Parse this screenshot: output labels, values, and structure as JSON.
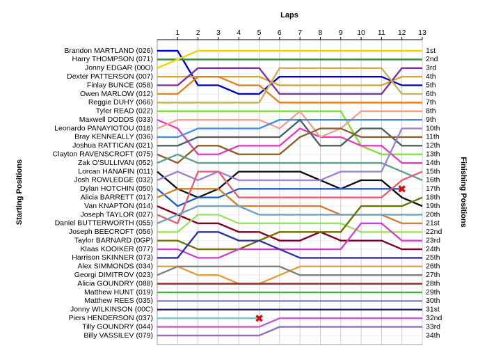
{
  "chart_data": {
    "type": "lapchart",
    "title": "Laps",
    "y_label": "Starting Positions",
    "y2_label": "Finishing Positions",
    "x": [
      0,
      1,
      2,
      3,
      4,
      5,
      6,
      7,
      8,
      9,
      10,
      11,
      12,
      13
    ],
    "xlim": [
      0,
      13
    ],
    "xticks": [
      1,
      2,
      3,
      4,
      5,
      6,
      7,
      8,
      9,
      10,
      11,
      12,
      13
    ],
    "ylim": [
      1,
      34
    ],
    "grid": true,
    "finishing_labels": [
      "1st",
      "2nd",
      "3rd",
      "4th",
      "5th",
      "6th",
      "7th",
      "8th",
      "9th",
      "10th",
      "11th",
      "12th",
      "13th",
      "14th",
      "15th",
      "16th",
      "17th",
      "18th",
      "19th",
      "20th",
      "21st",
      "22nd",
      "23rd",
      "24th",
      "25th",
      "26th",
      "27th",
      "28th",
      "29th",
      "30th",
      "31st",
      "32nd",
      "33rd",
      "34th"
    ],
    "series": [
      {
        "name": "Brandon MARTLAND (026)",
        "color": "#0000c0",
        "values": [
          1,
          1,
          5,
          5,
          6,
          6,
          4,
          4,
          4,
          4,
          4,
          4,
          5,
          5
        ]
      },
      {
        "name": "Harry THOMPSON (071)",
        "color": "#2e8b2e",
        "values": [
          2,
          2,
          2,
          2,
          2,
          2,
          2,
          2,
          2,
          2,
          2,
          2,
          2,
          2
        ]
      },
      {
        "name": "Jonny EDGAR (00O)",
        "color": "#e8d800",
        "values": [
          3,
          2,
          1,
          1,
          1,
          1,
          1,
          1,
          1,
          1,
          1,
          1,
          1,
          1
        ]
      },
      {
        "name": "Dexter PATTERSON (007)",
        "color": "#d0a830",
        "values": [
          4,
          4,
          4,
          4,
          4,
          4,
          5,
          5,
          5,
          5,
          5,
          5,
          4,
          4
        ]
      },
      {
        "name": "Finlay BUNCE (058)",
        "color": "#8030a0",
        "values": [
          5,
          5,
          3,
          3,
          3,
          3,
          6,
          6,
          6,
          6,
          6,
          6,
          3,
          3
        ]
      },
      {
        "name": "Owen MARLOW (012)",
        "color": "#e08020",
        "values": [
          6,
          6,
          4,
          4,
          5,
          5,
          7,
          7,
          7,
          7,
          7,
          7,
          7,
          7
        ]
      },
      {
        "name": "Reggie DUHY (066)",
        "color": "#c8b060",
        "values": [
          7,
          7,
          7,
          7,
          7,
          7,
          3,
          3,
          3,
          3,
          3,
          3,
          6,
          6
        ]
      },
      {
        "name": "Tyler READ (022)",
        "color": "#80e040",
        "values": [
          8,
          8,
          8,
          8,
          8,
          8,
          8,
          8,
          8,
          8,
          12,
          13,
          13,
          13
        ]
      },
      {
        "name": "Maxwell DODDS (033)",
        "color": "#e040c0",
        "values": [
          9,
          10,
          13,
          13,
          12,
          12,
          12,
          10,
          11,
          11,
          12,
          12,
          14,
          14
        ]
      },
      {
        "name": "Leonardo PANAYIOTOU (016)",
        "color": "#f0a090",
        "values": [
          10,
          9,
          9,
          9,
          9,
          9,
          10,
          8,
          11,
          10,
          8,
          8,
          8,
          8
        ]
      },
      {
        "name": "Bray KENNEALLY (036)",
        "color": "#4090e0",
        "values": [
          11,
          11,
          10,
          10,
          10,
          10,
          9,
          9,
          9,
          9,
          9,
          9,
          9,
          9
        ]
      },
      {
        "name": "Joshua RATTICAN (021)",
        "color": "#506060",
        "values": [
          12,
          12,
          11,
          11,
          11,
          11,
          11,
          9,
          12,
          12,
          10,
          10,
          12,
          12
        ]
      },
      {
        "name": "Clayton RAVENSCROFT (075)",
        "color": "#8b6030",
        "values": [
          13,
          14,
          12,
          12,
          13,
          13,
          13,
          11,
          10,
          10,
          11,
          11,
          11,
          11
        ]
      },
      {
        "name": "Zak O'SULLIVAN (052)",
        "color": "#60a090",
        "values": [
          14,
          13,
          14,
          14,
          14,
          14,
          14,
          14,
          14,
          14,
          14,
          14,
          15,
          16
        ]
      },
      {
        "name": "Lorcan HANAFIN (011)",
        "color": "#101010",
        "values": [
          15,
          17,
          18,
          17,
          15,
          15,
          15,
          15,
          16,
          17,
          16,
          16,
          18,
          19
        ]
      },
      {
        "name": "Josh ROWLEDGE (032)",
        "color": "#a080d0",
        "values": [
          16,
          15,
          16,
          15,
          16,
          16,
          16,
          16,
          16,
          15,
          15,
          15,
          10,
          10
        ]
      },
      {
        "name": "Dylan HOTCHIN (050)",
        "color": "#2060c0",
        "values": [
          17,
          19,
          18,
          18,
          17,
          17,
          17,
          17,
          17,
          17,
          17,
          17,
          17,
          null
        ]
      },
      {
        "name": "Alicia BARRETT (017)",
        "color": "#d08030",
        "values": [
          18,
          17,
          17,
          17,
          19,
          19,
          19,
          19,
          19,
          20,
          20,
          20,
          21,
          21
        ]
      },
      {
        "name": "Van KNAPTON (014)",
        "color": "#800020",
        "values": [
          19,
          20,
          21,
          21,
          22,
          22,
          23,
          23,
          22,
          23,
          23,
          23,
          24,
          24
        ]
      },
      {
        "name": "Joseph TAYLOR (027)",
        "color": "#e06070",
        "values": [
          20,
          21,
          15,
          15,
          18,
          18,
          18,
          18,
          18,
          18,
          18,
          18,
          16,
          15
        ]
      },
      {
        "name": "Daniel BUTTERWORTH (055)",
        "color": "#70a0c0",
        "values": [
          21,
          20,
          19,
          19,
          19,
          20,
          20,
          20,
          20,
          20,
          20,
          20,
          20,
          20
        ]
      },
      {
        "name": "Joseph BEECROFT (056)",
        "color": "#a0e060",
        "values": [
          22,
          22,
          20,
          20,
          21,
          21,
          21,
          21,
          21,
          21,
          22,
          22,
          22,
          22
        ]
      },
      {
        "name": "Taylor BARNARD (0GP)",
        "color": "#707000",
        "values": [
          23,
          23,
          24,
          24,
          24,
          23,
          22,
          22,
          22,
          22,
          19,
          19,
          19,
          18
        ]
      },
      {
        "name": "Klaas KOOIKER (077)",
        "color": "#d040d0",
        "values": [
          24,
          24,
          25,
          25,
          24,
          24,
          24,
          24,
          24,
          24,
          21,
          21,
          23,
          23
        ]
      },
      {
        "name": "Harrison SKINNER (073)",
        "color": "#3030a0",
        "values": [
          25,
          25,
          22,
          22,
          23,
          23,
          24,
          25,
          25,
          25,
          25,
          25,
          25,
          25
        ]
      },
      {
        "name": "Alex SIMMONDS (034)",
        "color": "#e0a040",
        "values": [
          26,
          26,
          27,
          27,
          28,
          28,
          27,
          26,
          26,
          26,
          26,
          26,
          26,
          26
        ]
      },
      {
        "name": "Georgi DIMITROV (023)",
        "color": "#808080",
        "values": [
          27,
          26,
          26,
          26,
          26,
          26,
          26,
          27,
          27,
          27,
          27,
          27,
          27,
          27
        ]
      },
      {
        "name": "Alicia GOUNDRY (088)",
        "color": "#903030",
        "values": [
          28,
          28,
          28,
          28,
          28,
          28,
          28,
          28,
          28,
          28,
          28,
          28,
          28,
          28
        ]
      },
      {
        "name": "Matthew HUNT (019)",
        "color": "#40b040",
        "values": [
          29,
          29,
          29,
          29,
          29,
          29,
          29,
          29,
          29,
          29,
          29,
          29,
          29,
          29
        ]
      },
      {
        "name": "Matthew REES (035)",
        "color": "#8080c0",
        "values": [
          30,
          30,
          30,
          30,
          30,
          30,
          30,
          30,
          30,
          30,
          30,
          30,
          30,
          30
        ]
      },
      {
        "name": "Jonny WILKINSON (00C)",
        "color": "#202060",
        "values": [
          31,
          31,
          31,
          31,
          31,
          31,
          31,
          31,
          31,
          31,
          31,
          31,
          31,
          31
        ]
      },
      {
        "name": "Piers HENDERSON (037)",
        "color": "#80c0c0",
        "values": [
          32,
          32,
          32,
          32,
          32,
          32,
          null,
          null,
          null,
          null,
          null,
          null,
          null,
          null
        ]
      },
      {
        "name": "Tilly GOUNDRY (044)",
        "color": "#c060c0",
        "values": [
          33,
          33,
          33,
          33,
          33,
          33,
          32,
          32,
          32,
          32,
          32,
          32,
          32,
          32
        ]
      },
      {
        "name": "Billy VASSILEV (079)",
        "color": "#9070b0",
        "values": [
          34,
          34,
          34,
          34,
          34,
          34,
          33,
          33,
          33,
          33,
          33,
          33,
          33,
          33
        ]
      }
    ],
    "crashes": [
      {
        "lap": 5,
        "position": 32
      },
      {
        "lap": 12,
        "position": 17
      }
    ],
    "crash_color": "#d01010"
  }
}
